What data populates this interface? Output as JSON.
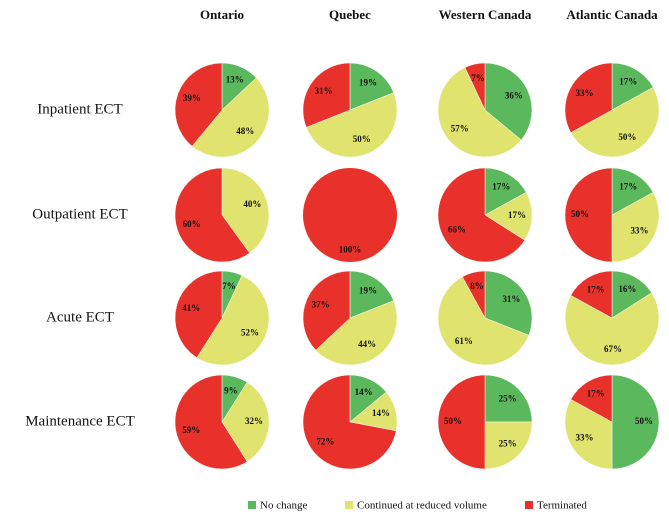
{
  "column_labels": [
    "Ontario",
    "Quebec",
    "Western Canada",
    "Atlantic Canada"
  ],
  "row_labels": [
    "Inpatient ECT",
    "Outpatient ECT",
    "Acute ECT",
    "Maintenance ECT"
  ],
  "legend": {
    "labels": [
      "No change",
      "Continued at reduced volume",
      "Terminated"
    ],
    "colors": [
      "#5cb85c",
      "#e0e36e",
      "#e8312a"
    ]
  },
  "chart_data": [
    {
      "type": "pie",
      "values": [
        13,
        48,
        39
      ],
      "value_labels": [
        "13%",
        "48%",
        "39%"
      ]
    },
    {
      "type": "pie",
      "values": [
        19,
        50,
        31
      ],
      "value_labels": [
        "19%",
        "50%",
        "31%"
      ]
    },
    {
      "type": "pie",
      "values": [
        36,
        57,
        7
      ],
      "value_labels": [
        "36%",
        "57%",
        "7%"
      ]
    },
    {
      "type": "pie",
      "values": [
        17,
        50,
        33
      ],
      "value_labels": [
        "17%",
        "50%",
        "33%"
      ]
    },
    {
      "type": "pie",
      "values": [
        0,
        40,
        60
      ],
      "value_labels": [
        "0%",
        "40%",
        "60%"
      ]
    },
    {
      "type": "pie",
      "values": [
        0,
        null,
        100
      ],
      "value_labels": [
        "0%",
        null,
        "100%"
      ]
    },
    {
      "type": "pie",
      "values": [
        17,
        17,
        66
      ],
      "value_labels": [
        "17%",
        "17%",
        "66%"
      ]
    },
    {
      "type": "pie",
      "values": [
        17,
        33,
        50
      ],
      "value_labels": [
        "17%",
        "33%",
        "50%"
      ]
    },
    {
      "type": "pie",
      "values": [
        7,
        52,
        41
      ],
      "value_labels": [
        "7%",
        "52%",
        "41%"
      ]
    },
    {
      "type": "pie",
      "values": [
        19,
        44,
        37
      ],
      "value_labels": [
        "19%",
        "44%",
        "37%"
      ]
    },
    {
      "type": "pie",
      "values": [
        31,
        61,
        8
      ],
      "value_labels": [
        "31%",
        "61%",
        "8%"
      ]
    },
    {
      "type": "pie",
      "values": [
        16,
        67,
        17
      ],
      "value_labels": [
        "16%",
        "67%",
        "17%"
      ]
    },
    {
      "type": "pie",
      "values": [
        9,
        32,
        59
      ],
      "value_labels": [
        "9%",
        "32%",
        "59%"
      ]
    },
    {
      "type": "pie",
      "values": [
        14,
        14,
        72
      ],
      "value_labels": [
        "14%",
        "14%",
        "72%"
      ]
    },
    {
      "type": "pie",
      "values": [
        25,
        25,
        50
      ],
      "value_labels": [
        "25%",
        "25%",
        "50%"
      ]
    },
    {
      "type": "pie",
      "values": [
        50,
        33,
        17
      ],
      "value_labels": [
        "50%",
        "33%",
        "17%"
      ]
    }
  ]
}
